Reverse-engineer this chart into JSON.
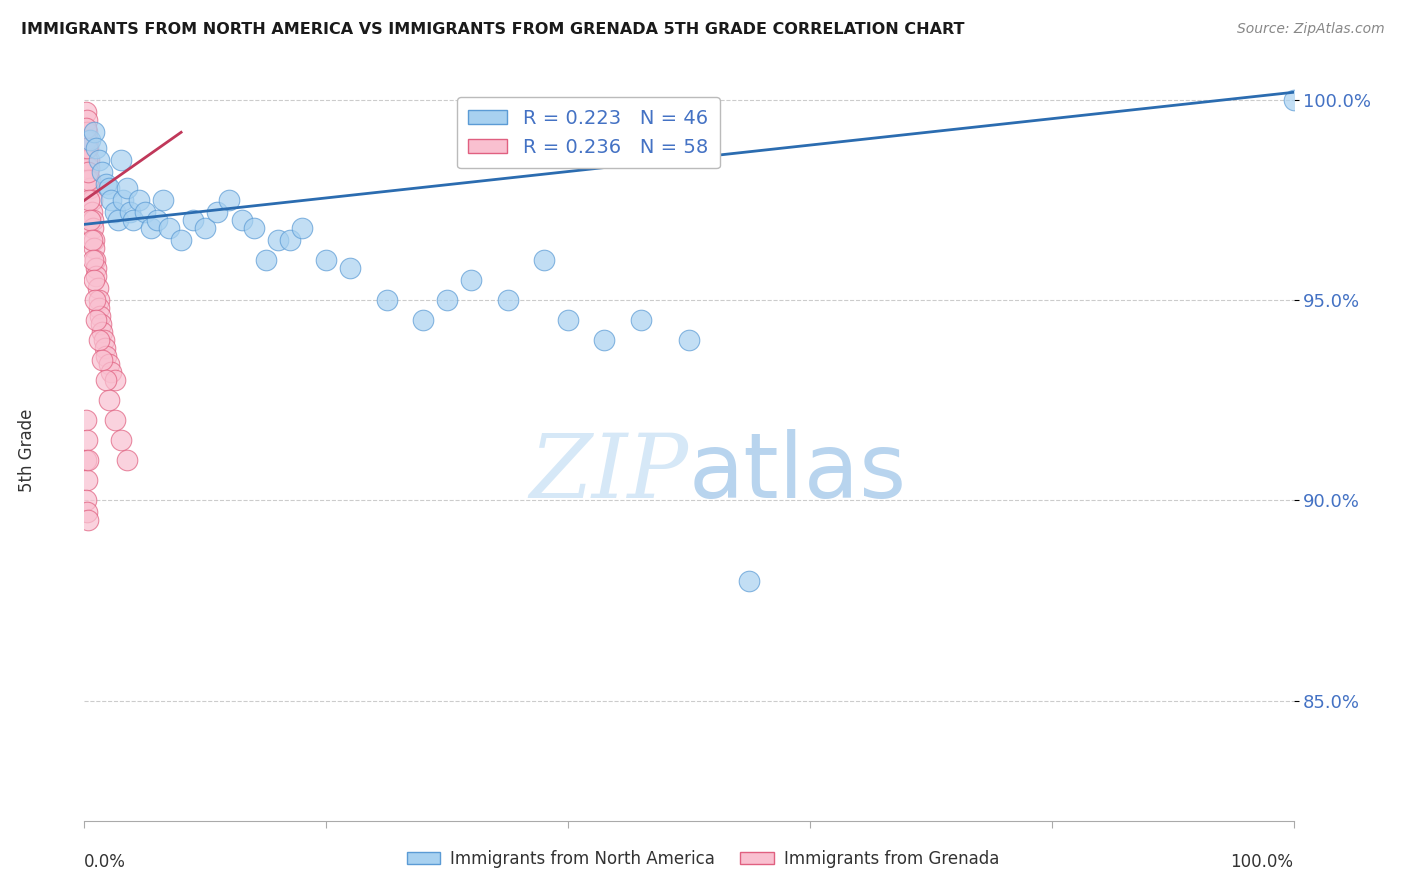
{
  "title": "IMMIGRANTS FROM NORTH AMERICA VS IMMIGRANTS FROM GRENADA 5TH GRADE CORRELATION CHART",
  "source": "Source: ZipAtlas.com",
  "ylabel": "5th Grade",
  "legend_blue_label": "Immigrants from North America",
  "legend_pink_label": "Immigrants from Grenada",
  "legend_r_blue": "R = 0.223",
  "legend_n_blue": "N = 46",
  "legend_r_pink": "R = 0.236",
  "legend_n_pink": "N = 58",
  "blue_color": "#a8d1f0",
  "blue_edge_color": "#5b9bd5",
  "pink_color": "#f9c0d0",
  "pink_edge_color": "#e06080",
  "trendline_blue_color": "#2b6cb0",
  "trendline_pink_color": "#c0385a",
  "text_blue_color": "#4472c4",
  "watermark_color": "#d6e8f7",
  "background_color": "#ffffff",
  "grid_color": "#cccccc",
  "blue_x": [
    0.005,
    0.008,
    0.01,
    0.012,
    0.015,
    0.018,
    0.02,
    0.022,
    0.025,
    0.028,
    0.03,
    0.032,
    0.035,
    0.038,
    0.04,
    0.045,
    0.05,
    0.055,
    0.06,
    0.065,
    0.07,
    0.08,
    0.09,
    0.1,
    0.11,
    0.12,
    0.13,
    0.14,
    0.15,
    0.16,
    0.17,
    0.18,
    0.2,
    0.22,
    0.25,
    0.28,
    0.3,
    0.32,
    0.35,
    0.38,
    0.4,
    0.43,
    0.46,
    0.5,
    0.55,
    1.0
  ],
  "blue_y": [
    0.99,
    0.992,
    0.988,
    0.985,
    0.982,
    0.979,
    0.978,
    0.975,
    0.972,
    0.97,
    0.985,
    0.975,
    0.978,
    0.972,
    0.97,
    0.975,
    0.972,
    0.968,
    0.97,
    0.975,
    0.968,
    0.965,
    0.97,
    0.968,
    0.972,
    0.975,
    0.97,
    0.968,
    0.96,
    0.965,
    0.965,
    0.968,
    0.96,
    0.958,
    0.95,
    0.945,
    0.95,
    0.955,
    0.95,
    0.96,
    0.945,
    0.94,
    0.945,
    0.94,
    0.88,
    1.0
  ],
  "pink_x": [
    0.001,
    0.002,
    0.002,
    0.003,
    0.003,
    0.004,
    0.004,
    0.005,
    0.005,
    0.006,
    0.006,
    0.007,
    0.007,
    0.008,
    0.008,
    0.009,
    0.01,
    0.01,
    0.011,
    0.012,
    0.012,
    0.013,
    0.014,
    0.015,
    0.016,
    0.017,
    0.018,
    0.02,
    0.022,
    0.025,
    0.001,
    0.002,
    0.003,
    0.004,
    0.005,
    0.006,
    0.007,
    0.008,
    0.009,
    0.01,
    0.012,
    0.015,
    0.018,
    0.02,
    0.025,
    0.03,
    0.035,
    0.001,
    0.002,
    0.003,
    0.001,
    0.002,
    0.001,
    0.002,
    0.003,
    0.001,
    0.002,
    0.003
  ],
  "pink_y": [
    0.997,
    0.995,
    0.992,
    0.99,
    0.988,
    0.985,
    0.983,
    0.98,
    0.978,
    0.975,
    0.972,
    0.97,
    0.968,
    0.965,
    0.963,
    0.96,
    0.958,
    0.956,
    0.953,
    0.95,
    0.948,
    0.946,
    0.944,
    0.942,
    0.94,
    0.938,
    0.936,
    0.934,
    0.932,
    0.93,
    0.99,
    0.985,
    0.98,
    0.975,
    0.97,
    0.965,
    0.96,
    0.955,
    0.95,
    0.945,
    0.94,
    0.935,
    0.93,
    0.925,
    0.92,
    0.915,
    0.91,
    0.993,
    0.988,
    0.982,
    0.91,
    0.905,
    0.9,
    0.897,
    0.895,
    0.92,
    0.915,
    0.91
  ],
  "xlim": [
    0.0,
    1.0
  ],
  "ylim": [
    0.82,
    1.005
  ],
  "yticks": [
    0.85,
    0.9,
    0.95,
    1.0
  ],
  "ytick_labels": [
    "85.0%",
    "90.0%",
    "95.0%",
    "100.0%"
  ]
}
